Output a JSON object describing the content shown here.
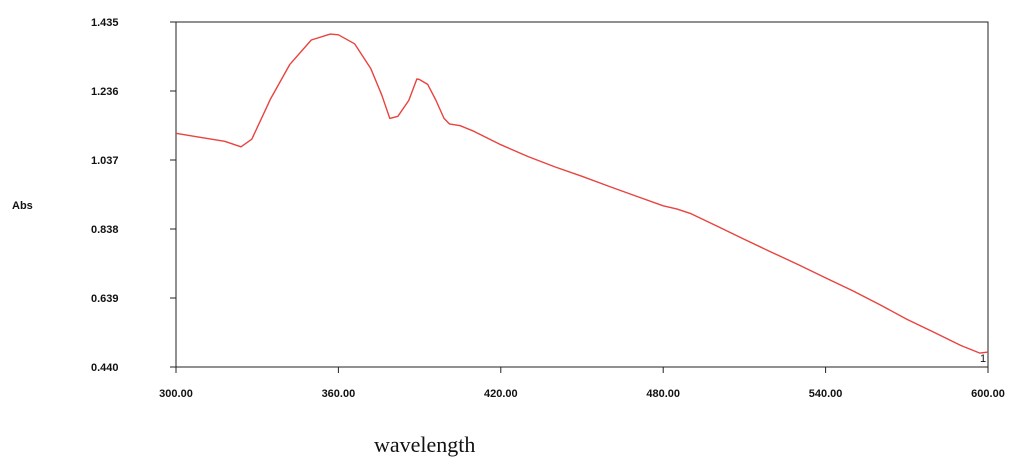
{
  "chart_data": {
    "type": "line",
    "xlabel": "wavelength",
    "ylabel": "Abs",
    "xlim": [
      300,
      600
    ],
    "ylim": [
      0.44,
      1.435
    ],
    "x_ticks": [
      "300.00",
      "360.00",
      "420.00",
      "480.00",
      "540.00",
      "600.00"
    ],
    "y_ticks": [
      "1.435",
      "1.236",
      "1.037",
      "0.838",
      "0.639",
      "0.440"
    ],
    "line_color": "#e8433f",
    "grid": false,
    "series": [
      {
        "name": "1",
        "x": [
          300,
          310,
          318,
          324,
          328,
          335,
          342,
          350,
          357,
          360,
          366,
          372,
          376,
          379,
          382,
          386,
          389,
          390,
          393,
          396,
          399,
          401,
          405,
          410,
          420,
          430,
          440,
          450,
          460,
          470,
          480,
          485,
          490,
          500,
          510,
          520,
          530,
          540,
          550,
          560,
          570,
          580,
          590,
          597,
          600
        ],
        "y": [
          1.114,
          1.101,
          1.091,
          1.075,
          1.097,
          1.214,
          1.312,
          1.383,
          1.4,
          1.398,
          1.372,
          1.3,
          1.225,
          1.157,
          1.163,
          1.209,
          1.271,
          1.269,
          1.255,
          1.21,
          1.157,
          1.141,
          1.136,
          1.12,
          1.081,
          1.047,
          1.017,
          0.99,
          0.961,
          0.933,
          0.905,
          0.896,
          0.883,
          0.846,
          0.808,
          0.771,
          0.735,
          0.697,
          0.66,
          0.62,
          0.578,
          0.54,
          0.502,
          0.48,
          0.483
        ]
      }
    ]
  }
}
